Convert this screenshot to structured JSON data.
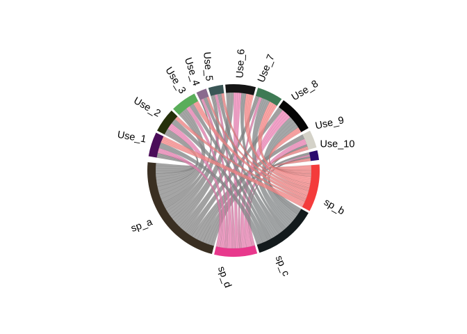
{
  "diagram": {
    "type": "chord",
    "sectors": [
      {
        "id": "sp_a",
        "label": "sp_a",
        "color": "#3a2f22",
        "side": "source"
      },
      {
        "id": "sp_d",
        "label": "sp_d",
        "color": "#e8388c",
        "side": "source"
      },
      {
        "id": "sp_c",
        "label": "sp_c",
        "color": "#131a1c",
        "side": "source"
      },
      {
        "id": "sp_b",
        "label": "sp_b",
        "color": "#f43b3b",
        "side": "source"
      },
      {
        "id": "Use_10",
        "label": "Use_10",
        "color": "#2b0b6e",
        "side": "target"
      },
      {
        "id": "Use_9",
        "label": "Use_9",
        "color": "#d4d2c8",
        "side": "target"
      },
      {
        "id": "Use_8",
        "label": "Use_8",
        "color": "#050505",
        "side": "target"
      },
      {
        "id": "Use_7",
        "label": "Use_7",
        "color": "#3e7a54",
        "side": "target"
      },
      {
        "id": "Use_6",
        "label": "Use_6",
        "color": "#151515",
        "side": "target"
      },
      {
        "id": "Use_5",
        "label": "Use_5",
        "color": "#3a5656",
        "side": "target"
      },
      {
        "id": "Use_4",
        "label": "Use_4",
        "color": "#8a6a8e",
        "side": "target"
      },
      {
        "id": "Use_3",
        "label": "Use_3",
        "color": "#5aad5a",
        "side": "target"
      },
      {
        "id": "Use_2",
        "label": "Use_2",
        "color": "#25300a",
        "side": "target"
      },
      {
        "id": "Use_1",
        "label": "Use_1",
        "color": "#4b0d59",
        "side": "target"
      }
    ],
    "link_colors": {
      "sp_a": "#8c8c8c",
      "sp_d": "#ef86b9",
      "sp_c": "#8a8e90",
      "sp_b": "#fb8a8a"
    }
  }
}
